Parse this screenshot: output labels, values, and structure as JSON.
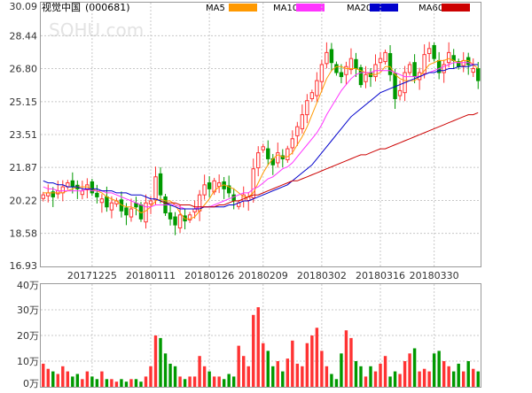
{
  "header": {
    "stock": "视觉中国",
    "code": "(000681)",
    "watermark": "SOHU.com"
  },
  "legend": [
    {
      "name": "MA5",
      "color": "#ff9900"
    },
    {
      "name": "MA10",
      "color": "#ff33ff"
    },
    {
      "name": "MA20",
      "color": "#0000cc"
    },
    {
      "name": "MA60",
      "color": "#cc0000"
    }
  ],
  "colors": {
    "up": "#ff3333",
    "down": "#009900",
    "grid": "#c8c8c8",
    "axis_text": "#333333"
  },
  "chart_data": [
    {
      "type": "candlestick",
      "title": "",
      "y_ticks": [
        "30.09",
        "28.44",
        "26.80",
        "25.15",
        "23.51",
        "21.87",
        "20.22",
        "18.58",
        "16.93"
      ],
      "ylim": [
        16.93,
        30.09
      ],
      "x_ticks": [
        "20171225",
        "20180111",
        "20180126",
        "20180209",
        "20180302",
        "20180316",
        "20180330"
      ],
      "x_tick_index": [
        10,
        22,
        34,
        45,
        57,
        69,
        80
      ],
      "close": [
        20.5,
        20.6,
        20.4,
        20.7,
        20.9,
        21.1,
        20.9,
        20.8,
        20.7,
        21.0,
        20.6,
        20.4,
        20.3,
        19.9,
        20.1,
        20.2,
        19.7,
        19.5,
        19.8,
        19.9,
        19.3,
        20.1,
        20.2,
        21.4,
        20.5,
        19.6,
        19.3,
        19.0,
        19.5,
        19.2,
        19.5,
        19.8,
        20.5,
        21.0,
        20.8,
        21.2,
        21.1,
        20.8,
        20.6,
        20.2,
        20.1,
        20.5,
        20.4,
        21.8,
        22.6,
        22.9,
        22.3,
        22.0,
        22.6,
        22.3,
        22.8,
        23.3,
        23.9,
        24.5,
        25.2,
        25.6,
        26.2,
        27.0,
        27.6,
        27.1,
        26.6,
        26.4,
        26.9,
        27.3,
        26.8,
        26.0,
        26.5,
        26.4,
        27.0,
        27.3,
        27.6,
        26.5,
        25.3,
        25.7,
        26.6,
        27.0,
        26.4,
        26.6,
        27.5,
        27.8,
        27.3,
        26.6,
        27.0,
        27.6,
        27.2,
        26.9,
        27.2,
        27.0,
        26.8,
        26.2
      ],
      "ma5": [
        20.6,
        20.6,
        20.6,
        20.6,
        20.6,
        20.7,
        20.8,
        20.9,
        20.9,
        20.9,
        20.8,
        20.7,
        20.6,
        20.4,
        20.3,
        20.2,
        20.0,
        19.9,
        19.9,
        19.8,
        19.6,
        19.7,
        19.9,
        20.2,
        20.3,
        20.2,
        20.2,
        20.0,
        19.6,
        19.3,
        19.3,
        19.4,
        19.7,
        20.0,
        20.3,
        20.7,
        20.9,
        21.0,
        20.9,
        20.8,
        20.6,
        20.4,
        20.4,
        20.6,
        21.1,
        21.6,
        22.0,
        22.3,
        22.5,
        22.4,
        22.4,
        22.6,
        23.0,
        23.4,
        23.9,
        24.5,
        25.1,
        25.7,
        26.3,
        26.7,
        26.9,
        26.9,
        26.8,
        26.8,
        26.8,
        26.7,
        26.6,
        26.5,
        26.5,
        26.6,
        26.9,
        26.9,
        26.5,
        26.3,
        26.2,
        26.2,
        26.2,
        26.4,
        26.7,
        27.0,
        27.1,
        27.2,
        27.2,
        27.3,
        27.2,
        27.1,
        27.2,
        27.2,
        27.0,
        26.8
      ],
      "ma10": [
        20.9,
        20.8,
        20.8,
        20.7,
        20.7,
        20.7,
        20.7,
        20.7,
        20.7,
        20.8,
        20.7,
        20.7,
        20.7,
        20.6,
        20.6,
        20.5,
        20.4,
        20.3,
        20.2,
        20.1,
        20.0,
        19.9,
        19.9,
        20.0,
        20.0,
        20.0,
        20.0,
        20.0,
        19.9,
        19.8,
        19.8,
        19.8,
        19.9,
        19.9,
        19.9,
        20.0,
        20.1,
        20.2,
        20.3,
        20.4,
        20.5,
        20.6,
        20.6,
        20.8,
        20.9,
        21.1,
        21.3,
        21.4,
        21.6,
        21.8,
        21.9,
        22.1,
        22.4,
        22.7,
        23.0,
        23.3,
        23.6,
        24.0,
        24.5,
        24.9,
        25.3,
        25.7,
        26.0,
        26.3,
        26.5,
        26.6,
        26.6,
        26.6,
        26.7,
        26.7,
        26.7,
        26.7,
        26.6,
        26.5,
        26.4,
        26.4,
        26.4,
        26.4,
        26.5,
        26.6,
        26.7,
        26.8,
        26.9,
        27.0,
        27.1,
        27.1,
        27.1,
        27.1,
        27.0,
        27.0
      ],
      "ma20": [
        21.2,
        21.1,
        21.1,
        21.0,
        21.0,
        20.9,
        20.9,
        20.9,
        20.8,
        20.8,
        20.8,
        20.8,
        20.7,
        20.7,
        20.7,
        20.6,
        20.6,
        20.6,
        20.5,
        20.5,
        20.5,
        20.4,
        20.3,
        20.3,
        20.2,
        20.1,
        20.0,
        19.9,
        19.8,
        19.8,
        19.8,
        19.8,
        19.8,
        19.9,
        19.9,
        19.9,
        19.9,
        19.9,
        20.0,
        20.0,
        20.1,
        20.2,
        20.2,
        20.3,
        20.4,
        20.5,
        20.6,
        20.7,
        20.8,
        20.9,
        21.0,
        21.2,
        21.4,
        21.6,
        21.8,
        22.0,
        22.3,
        22.6,
        22.9,
        23.2,
        23.5,
        23.8,
        24.1,
        24.4,
        24.6,
        24.8,
        25.0,
        25.2,
        25.4,
        25.6,
        25.7,
        25.8,
        25.9,
        26.0,
        26.1,
        26.2,
        26.3,
        26.4,
        26.5,
        26.6,
        26.6,
        26.7,
        26.7,
        26.8,
        26.8,
        26.9,
        26.9,
        26.9,
        27.0,
        27.0
      ],
      "ma60": [
        null,
        null,
        null,
        null,
        null,
        null,
        null,
        null,
        null,
        null,
        null,
        null,
        null,
        null,
        null,
        null,
        null,
        null,
        null,
        null,
        null,
        null,
        null,
        null,
        20.2,
        20.1,
        20.1,
        20.1,
        20.0,
        20.0,
        20.0,
        19.9,
        19.9,
        19.9,
        19.9,
        19.9,
        20.0,
        20.0,
        20.1,
        20.2,
        20.2,
        20.3,
        20.4,
        20.5,
        20.5,
        20.6,
        20.7,
        20.8,
        20.9,
        21.0,
        21.1,
        21.2,
        21.2,
        21.3,
        21.4,
        21.5,
        21.6,
        21.7,
        21.8,
        21.9,
        22.0,
        22.1,
        22.2,
        22.3,
        22.4,
        22.5,
        22.5,
        22.6,
        22.7,
        22.8,
        22.8,
        22.9,
        23.0,
        23.1,
        23.2,
        23.3,
        23.4,
        23.5,
        23.6,
        23.7,
        23.8,
        23.9,
        24.0,
        24.1,
        24.2,
        24.3,
        24.4,
        24.5,
        24.5,
        24.6
      ]
    },
    {
      "type": "bar",
      "title": "",
      "y_ticks": [
        "40万",
        "30万",
        "20万",
        "10万",
        "0万"
      ],
      "ylim": [
        0,
        40
      ],
      "unit": "万",
      "values": [
        9,
        7,
        6,
        5,
        8,
        6,
        4,
        5,
        3,
        6,
        4,
        3,
        6,
        3,
        3,
        2,
        3,
        2,
        3,
        3,
        2,
        4,
        8,
        20,
        19,
        13,
        9,
        8,
        4,
        3,
        4,
        4,
        12,
        8,
        6,
        4,
        4,
        3,
        5,
        4,
        16,
        12,
        8,
        28,
        31,
        17,
        14,
        8,
        10,
        6,
        11,
        18,
        9,
        8,
        17,
        20,
        23,
        14,
        8,
        5,
        3,
        13,
        22,
        19,
        10,
        8,
        4,
        8,
        6,
        9,
        12,
        4,
        6,
        5,
        10,
        13,
        15,
        6,
        7,
        6,
        13,
        14,
        10,
        8,
        6,
        9,
        6,
        10,
        7,
        6
      ]
    }
  ]
}
